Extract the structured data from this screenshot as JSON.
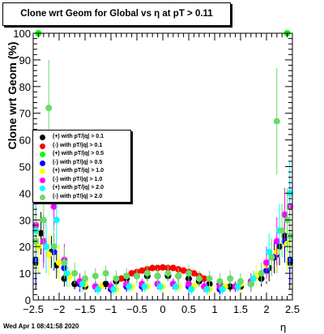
{
  "title": "Clone wrt Geom for Global vs   η at pT > 0.11",
  "footer": "Wed Apr  1 08:41:58 2020",
  "chart_data": {
    "type": "scatter",
    "xlabel": "η",
    "ylabel": "Clone wrt Geom (%)",
    "xlim": [
      -2.5,
      2.5
    ],
    "ylim": [
      0,
      100
    ],
    "xticks": [
      -2.5,
      -2,
      -1.5,
      -1,
      -0.5,
      0,
      0.5,
      1,
      1.5,
      2,
      2.5
    ],
    "xtick_labels": [
      "−2.5",
      "−2",
      "−1.5",
      "−1",
      "−0.5",
      "0",
      "0.5",
      "1",
      "1.5",
      "2",
      "2.5"
    ],
    "yticks": [
      0,
      10,
      20,
      30,
      40,
      50,
      60,
      70,
      80,
      90,
      100
    ],
    "ytick_labels": [
      "0",
      "10",
      "20",
      "30",
      "40",
      "50",
      "60",
      "70",
      "80",
      "90",
      "100"
    ],
    "grid": false,
    "legend_position": "left-middle",
    "series": [
      {
        "name": "(+) with pT/|q| > 0.1",
        "color": "#000000",
        "x": [
          -2.45,
          -2.35,
          -2.25,
          -2.15,
          -2.05,
          -1.9,
          -1.7,
          -1.5,
          -1.3,
          -1.1,
          -0.9,
          -0.7,
          -0.5,
          -0.3,
          -0.1,
          0.1,
          0.3,
          0.5,
          0.7,
          0.9,
          1.1,
          1.3,
          1.5,
          1.7,
          1.9,
          2.05,
          2.15,
          2.25,
          2.35,
          2.45
        ],
        "y": [
          14,
          25,
          20,
          18,
          13,
          8,
          6,
          5,
          5,
          6,
          7,
          8,
          9,
          9,
          9,
          9,
          9,
          8,
          7,
          6,
          6,
          5,
          5,
          6,
          8,
          12,
          16,
          20,
          24,
          14
        ],
        "err": [
          10,
          8,
          7,
          6,
          5,
          3,
          2,
          2,
          2,
          2,
          2,
          2,
          2,
          2,
          2,
          2,
          2,
          2,
          2,
          2,
          2,
          2,
          2,
          2,
          3,
          5,
          6,
          7,
          8,
          10
        ]
      },
      {
        "name": "(-) with pT/|q| > 0.1",
        "color": "#ff0000",
        "x": [
          -0.8,
          -0.7,
          -0.6,
          -0.5,
          -0.4,
          -0.3,
          -0.2,
          -0.1,
          0,
          0.1,
          0.2,
          0.3,
          0.4,
          0.5,
          0.6,
          0.7,
          0.8
        ],
        "y": [
          8,
          9,
          10,
          10.5,
          11,
          11.5,
          12,
          12,
          12.2,
          12,
          12,
          11.5,
          11,
          10.5,
          10,
          9,
          8
        ],
        "err": [
          1,
          1,
          1,
          1,
          1,
          1,
          1,
          1,
          1,
          1,
          1,
          1,
          1,
          1,
          1,
          1,
          1
        ]
      },
      {
        "name": "(+) with pT/|q| > 0.5",
        "color": "#00ff00",
        "x": [
          -2.4,
          2.4
        ],
        "y": [
          100,
          100
        ],
        "err": [
          0,
          0
        ]
      },
      {
        "name": "(-) with pT/|q| > 0.5",
        "color": "#0000ff",
        "x": [
          -2.45,
          -2.3,
          -2.1,
          -1.9,
          -1.6,
          -1.3,
          -1.0,
          -0.7,
          -0.4,
          -0.1,
          0.2,
          0.5,
          0.8,
          1.1,
          1.4,
          1.7,
          2.0,
          2.2,
          2.35,
          2.45
        ],
        "y": [
          15,
          22,
          18,
          12,
          6,
          5,
          4,
          5,
          5,
          6,
          6,
          5,
          5,
          4,
          5,
          6,
          11,
          17,
          22,
          15
        ],
        "err": [
          9,
          8,
          7,
          5,
          3,
          2,
          2,
          2,
          2,
          2,
          2,
          2,
          2,
          2,
          2,
          3,
          5,
          7,
          8,
          9
        ]
      },
      {
        "name": "(+) with pT/|q| > 1.0",
        "color": "#ffff00",
        "x": [
          -2.4,
          -2.2,
          -2.0,
          -1.8,
          -1.5,
          -1.2,
          -0.9,
          -0.6,
          -0.3,
          0.0,
          0.3,
          0.6,
          0.9,
          1.2,
          1.5,
          1.8,
          2.0,
          2.2,
          2.4
        ],
        "y": [
          20,
          17,
          14,
          9,
          6,
          5,
          4,
          5,
          5,
          5,
          5,
          5,
          4,
          5,
          6,
          9,
          13,
          18,
          21
        ],
        "err": [
          10,
          8,
          7,
          4,
          3,
          2,
          2,
          2,
          2,
          2,
          2,
          2,
          2,
          2,
          3,
          4,
          6,
          8,
          10
        ]
      },
      {
        "name": "(-) with pT/|q| > 1.0",
        "color": "#ff00ff",
        "x": [
          -2.45,
          -2.3,
          -2.1,
          -1.9,
          -1.6,
          -1.3,
          -1.0,
          -0.7,
          -0.4,
          -0.1,
          0.2,
          0.5,
          0.8,
          1.1,
          1.4,
          1.7,
          2.0,
          2.2,
          2.35,
          2.45
        ],
        "y": [
          28,
          22,
          35,
          15,
          7,
          5,
          5,
          6,
          6,
          6,
          6,
          6,
          5,
          5,
          5,
          7,
          14,
          22,
          32,
          35
        ],
        "err": [
          12,
          10,
          9,
          6,
          3,
          2,
          2,
          2,
          2,
          2,
          2,
          2,
          2,
          2,
          2,
          3,
          6,
          9,
          10,
          12
        ]
      },
      {
        "name": "(+) with pT/|q| > 2.0",
        "color": "#00ffff",
        "x": [
          -2.45,
          -2.25,
          -2.05,
          -1.85,
          -1.55,
          -1.25,
          -0.95,
          -0.65,
          -0.35,
          -0.05,
          0.25,
          0.55,
          0.85,
          1.15,
          1.45,
          1.75,
          2.05,
          2.25,
          2.45
        ],
        "y": [
          26,
          20,
          30,
          10,
          6,
          4,
          4,
          5,
          5,
          5,
          5,
          4,
          4,
          4,
          5,
          8,
          18,
          26,
          40
        ],
        "err": [
          12,
          10,
          10,
          5,
          3,
          2,
          2,
          2,
          2,
          2,
          2,
          2,
          2,
          2,
          2,
          3,
          7,
          10,
          12
        ]
      },
      {
        "name": "(-) with pT/|q| > 2.0",
        "color": "#66dd66",
        "x": [
          -2.45,
          -2.3,
          -2.2,
          -2.1,
          -1.9,
          -1.7,
          -1.5,
          -1.3,
          -1.1,
          -0.9,
          -0.7,
          -0.5,
          -0.3,
          -0.1,
          0.1,
          0.3,
          0.5,
          0.7,
          0.9,
          1.1,
          1.3,
          1.5,
          1.7,
          1.9,
          2.1,
          2.2,
          2.3,
          2.4,
          2.45
        ],
        "y": [
          22,
          30,
          72,
          20,
          14,
          10,
          8,
          9,
          10,
          8,
          9,
          9,
          10,
          9,
          10,
          9,
          10,
          8,
          8,
          7,
          8,
          7,
          6,
          10,
          16,
          67,
          26,
          30,
          24
        ],
        "err": [
          12,
          10,
          18,
          8,
          6,
          4,
          3,
          3,
          3,
          3,
          3,
          3,
          3,
          3,
          3,
          3,
          3,
          3,
          3,
          3,
          3,
          3,
          3,
          4,
          7,
          20,
          10,
          12,
          12
        ]
      }
    ]
  }
}
